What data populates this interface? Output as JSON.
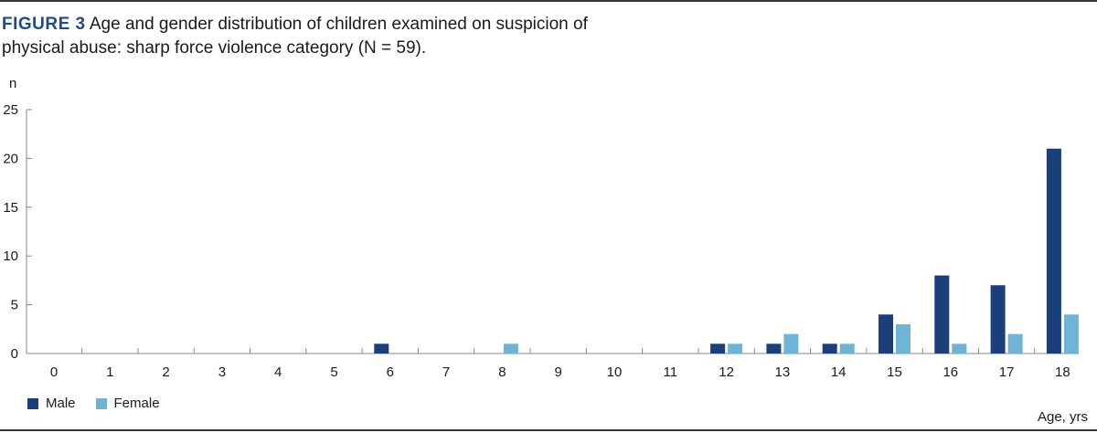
{
  "caption": {
    "label": "FIGURE 3",
    "text": "Age and gender distribution of children examined on suspicion of physical abuse: sharp force violence category (N = 59)."
  },
  "colors": {
    "male": "#1b3f7a",
    "female": "#6fb3d6"
  },
  "chart_data": {
    "type": "bar",
    "title": "",
    "ylabel": "n",
    "xlabel": "Age, yrs",
    "ylim": [
      0,
      25
    ],
    "yticks": [
      "0",
      "5",
      "10",
      "15",
      "20",
      "25"
    ],
    "categories": [
      "0",
      "1",
      "2",
      "3",
      "4",
      "5",
      "6",
      "7",
      "8",
      "9",
      "10",
      "11",
      "12",
      "13",
      "14",
      "15",
      "16",
      "17",
      "18"
    ],
    "series": [
      {
        "name": "Male",
        "values": [
          0,
          0,
          0,
          0,
          0,
          0,
          1,
          0,
          0,
          0,
          0,
          0,
          1,
          1,
          1,
          4,
          8,
          7,
          21
        ]
      },
      {
        "name": "Female",
        "values": [
          0,
          0,
          0,
          0,
          0,
          0,
          0,
          0,
          1,
          0,
          0,
          0,
          1,
          2,
          1,
          3,
          1,
          2,
          4
        ]
      }
    ],
    "legend": "bottom-left",
    "grid": false
  }
}
